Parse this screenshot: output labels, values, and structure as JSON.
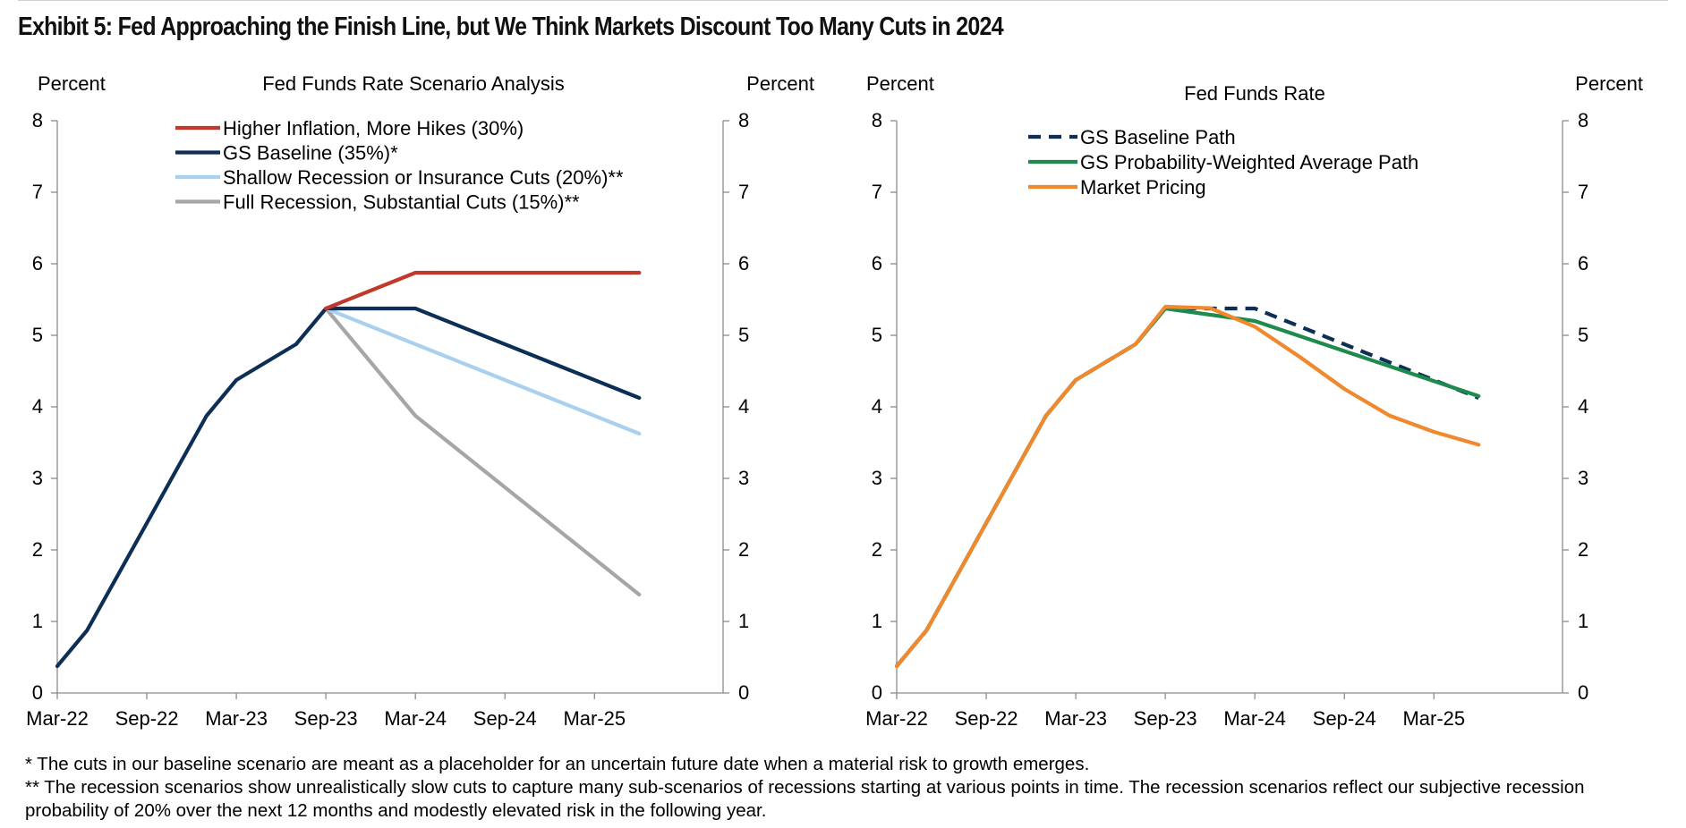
{
  "title": "Exhibit 5: Fed Approaching the Finish Line, but We Think Markets Discount Too Many Cuts in 2024",
  "footnotes": [
    "* The cuts in our baseline scenario are meant as a placeholder for an uncertain future date when a material risk to growth emerges.",
    "** The recession scenarios show unrealistically slow cuts to capture many sub-scenarios of recessions starting at various points in time.  The recession scenarios reflect our subjective recession probability of 20% over the next 12 months and modestly elevated risk in the following year."
  ],
  "chart_data": [
    {
      "type": "line",
      "title": "Fed Funds Rate Scenario Analysis",
      "ylabel_left": "Percent",
      "ylabel_right": "Percent",
      "ylim": [
        0,
        8
      ],
      "yticks": [
        0,
        1,
        2,
        3,
        4,
        5,
        6,
        7,
        8
      ],
      "xlim": [
        "2022-03",
        "2025-07"
      ],
      "xticks": [
        "Mar-22",
        "Sep-22",
        "Mar-23",
        "Sep-23",
        "Mar-24",
        "Sep-24",
        "Mar-25"
      ],
      "grid": false,
      "legend_position": "top-left",
      "series": [
        {
          "name": "Higher Inflation, More Hikes (30%)",
          "color": "#c0392b",
          "dash": false,
          "x": [
            "2023-09",
            "2024-03",
            "2025-06"
          ],
          "y": [
            5.375,
            5.875,
            5.875
          ]
        },
        {
          "name": "GS Baseline (35%)*",
          "color": "#0d2f55",
          "dash": false,
          "x": [
            "2022-03",
            "2022-05",
            "2022-07",
            "2022-09",
            "2022-11",
            "2023-01",
            "2023-03",
            "2023-05",
            "2023-07",
            "2023-09",
            "2024-03",
            "2025-06"
          ],
          "y": [
            0.375,
            0.875,
            1.625,
            2.375,
            3.125,
            3.875,
            4.375,
            4.625,
            4.875,
            5.375,
            5.375,
            4.125
          ]
        },
        {
          "name": "Shallow Recession or Insurance Cuts (20%)**",
          "color": "#a9d0ef",
          "dash": false,
          "x": [
            "2023-09",
            "2025-06"
          ],
          "y": [
            5.375,
            3.625
          ]
        },
        {
          "name": "Full Recession, Substantial Cuts (15%)**",
          "color": "#a6a6a6",
          "dash": false,
          "x": [
            "2023-09",
            "2024-03",
            "2025-06"
          ],
          "y": [
            5.375,
            3.875,
            1.375
          ]
        }
      ]
    },
    {
      "type": "line",
      "title": "Fed Funds Rate",
      "ylabel_left": "Percent",
      "ylabel_right": "Percent",
      "ylim": [
        0,
        8
      ],
      "yticks": [
        0,
        1,
        2,
        3,
        4,
        5,
        6,
        7,
        8
      ],
      "xlim": [
        "2022-03",
        "2025-07"
      ],
      "xticks": [
        "Mar-22",
        "Sep-22",
        "Mar-23",
        "Sep-23",
        "Mar-24",
        "Sep-24",
        "Mar-25"
      ],
      "grid": false,
      "legend_position": "top-center",
      "series": [
        {
          "name": "GS Baseline Path",
          "color": "#0d2f55",
          "dash": true,
          "x": [
            "2022-03",
            "2022-05",
            "2022-07",
            "2022-09",
            "2022-11",
            "2023-01",
            "2023-03",
            "2023-05",
            "2023-07",
            "2023-09",
            "2024-03",
            "2025-06"
          ],
          "y": [
            0.375,
            0.875,
            1.625,
            2.375,
            3.125,
            3.875,
            4.375,
            4.625,
            4.875,
            5.375,
            5.375,
            4.125
          ]
        },
        {
          "name": "GS Probability-Weighted Average Path",
          "color": "#1e8a4c",
          "dash": false,
          "x": [
            "2022-03",
            "2022-05",
            "2022-07",
            "2022-09",
            "2022-11",
            "2023-01",
            "2023-03",
            "2023-05",
            "2023-07",
            "2023-09",
            "2024-03",
            "2025-06"
          ],
          "y": [
            0.375,
            0.875,
            1.625,
            2.375,
            3.125,
            3.875,
            4.375,
            4.625,
            4.875,
            5.375,
            5.2,
            4.15
          ]
        },
        {
          "name": "Market Pricing",
          "color": "#f0892d",
          "dash": false,
          "x": [
            "2022-03",
            "2022-05",
            "2022-07",
            "2022-09",
            "2022-11",
            "2023-01",
            "2023-03",
            "2023-05",
            "2023-07",
            "2023-09",
            "2023-12",
            "2024-03",
            "2024-06",
            "2024-09",
            "2024-12",
            "2025-03",
            "2025-06"
          ],
          "y": [
            0.375,
            0.875,
            1.625,
            2.375,
            3.125,
            3.875,
            4.375,
            4.625,
            4.875,
            5.4,
            5.38,
            5.12,
            4.7,
            4.25,
            3.88,
            3.65,
            3.47
          ]
        }
      ]
    }
  ]
}
